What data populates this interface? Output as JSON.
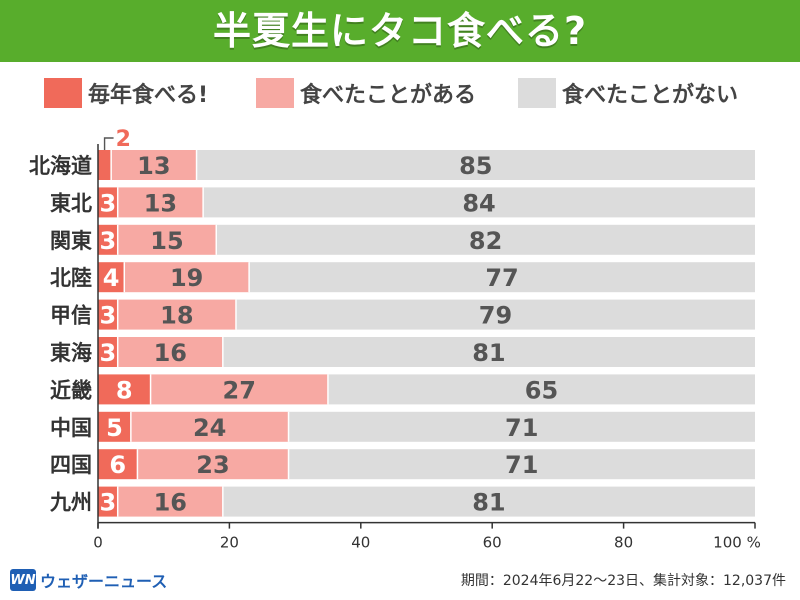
{
  "header": {
    "title": "半夏生にタコ食べる?"
  },
  "legend": [
    {
      "label": "毎年食べる!",
      "color": "#f06a5a"
    },
    {
      "label": "食べたことがある",
      "color": "#f7a9a3"
    },
    {
      "label": "食べたことがない",
      "color": "#dcdcdc"
    }
  ],
  "footer": {
    "logo_mark": "WN",
    "logo_text": "ウェザーニュース",
    "note": "期間：2024年6月22～23日、集計対象：12,037件"
  },
  "chart_data": {
    "type": "bar",
    "orientation": "horizontal",
    "stacked": true,
    "categories": [
      "北海道",
      "東北",
      "関東",
      "北陸",
      "甲信",
      "東海",
      "近畿",
      "中国",
      "四国",
      "九州"
    ],
    "series": [
      {
        "name": "毎年食べる!",
        "values": [
          2,
          3,
          3,
          4,
          3,
          3,
          8,
          5,
          6,
          3
        ],
        "color": "#f06a5a"
      },
      {
        "name": "食べたことがある",
        "values": [
          13,
          13,
          15,
          19,
          18,
          16,
          27,
          24,
          23,
          16
        ],
        "color": "#f7a9a3"
      },
      {
        "name": "食べたことがない",
        "values": [
          85,
          84,
          82,
          77,
          79,
          81,
          65,
          71,
          71,
          81
        ],
        "color": "#dcdcdc"
      }
    ],
    "xlim": [
      0,
      100
    ],
    "xticks": [
      "0",
      "20",
      "40",
      "60",
      "80",
      "100 %"
    ],
    "annotation_first_small": "2"
  }
}
